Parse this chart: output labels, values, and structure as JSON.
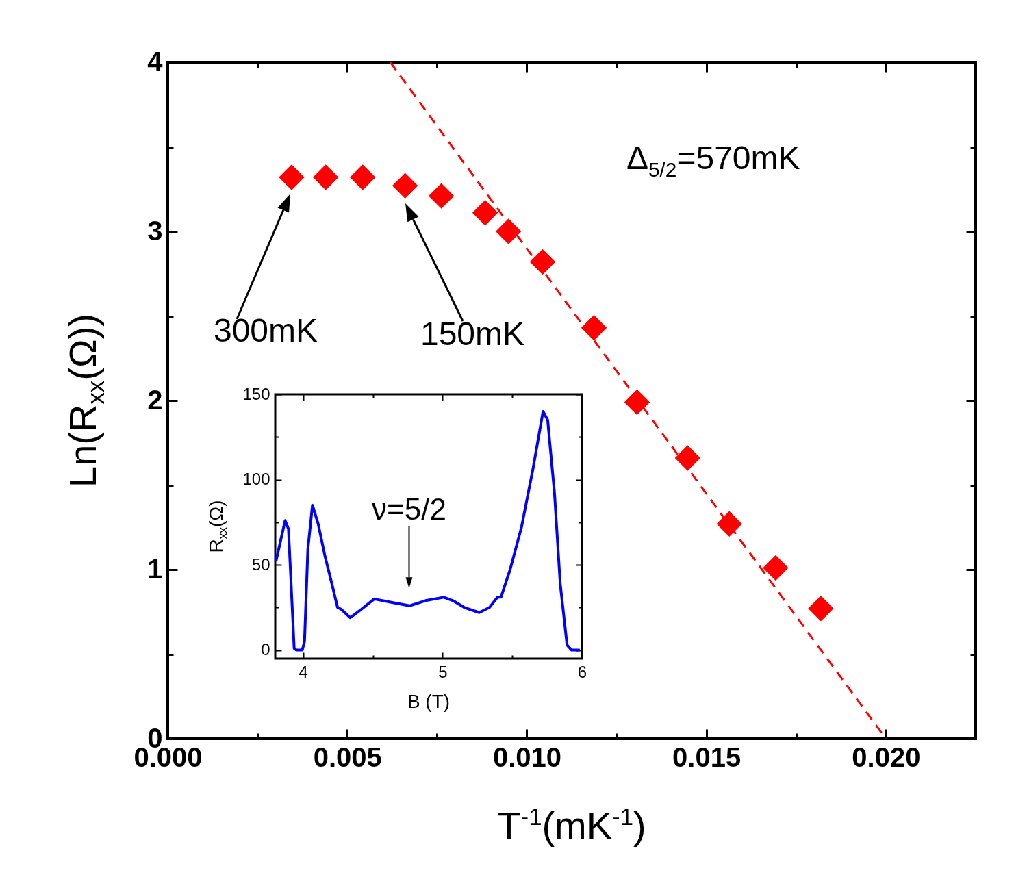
{
  "chart_data": [
    {
      "type": "scatter",
      "xlabel": "T$^{-1}$(mK$^{-1}$)",
      "ylabel": "Ln(R$_{xx}$(Ω))",
      "marker": "diamond",
      "series": [
        {
          "color": "#ff0000",
          "x": [
            0.00345,
            0.0044,
            0.00543,
            0.00661,
            0.00762,
            0.00884,
            0.00949,
            0.01044,
            0.01187,
            0.01307,
            0.01448,
            0.01564,
            0.01693,
            0.01819
          ],
          "values": [
            3.32,
            3.32,
            3.32,
            3.27,
            3.21,
            3.11,
            3.0,
            2.82,
            2.43,
            1.99,
            1.66,
            1.27,
            1.01,
            0.77
          ]
        },
        {
          "type": "line",
          "color": "#ff0000",
          "marker": "none",
          "line_style": "dashed",
          "x": [
            0.0062,
            0.02
          ],
          "values": [
            4,
            0
          ]
        }
      ],
      "xlim": [
        0,
        0.0225
      ],
      "xticks": [
        {
          "value": 0,
          "label": "0.000"
        },
        {
          "value": 0.0025,
          "label": null
        },
        {
          "value": 0.005,
          "label": "0.005"
        },
        {
          "value": 0.0075,
          "label": null
        },
        {
          "value": 0.01,
          "label": "0.010"
        },
        {
          "value": 0.0125,
          "label": null
        },
        {
          "value": 0.015,
          "label": "0.015"
        },
        {
          "value": 0.0175,
          "label": null
        },
        {
          "value": 0.02,
          "label": "0.020"
        }
      ],
      "ylim": [
        0,
        4
      ],
      "yticks": [
        0,
        {
          "value": 0.5,
          "label": null
        },
        1,
        {
          "value": 1.5,
          "label": null
        },
        2,
        {
          "value": 2.5,
          "label": null
        },
        3,
        {
          "value": 3.5,
          "label": null
        },
        4
      ],
      "annotations": [
        "Δ$_{5/2}$=570mK",
        "300mK",
        "150mK"
      ]
    },
    {
      "type": "line",
      "xlabel": "B (T)",
      "ylabel": "R$_{xx}$(Ω)",
      "color": "#0000ff",
      "x": [
        3.805,
        3.871,
        3.895,
        3.936,
        3.952,
        3.994,
        4.01,
        4.034,
        4.067,
        4.108,
        4.157,
        4.206,
        4.247,
        4.272,
        4.338,
        4.419,
        4.51,
        4.632,
        4.763,
        4.878,
        5.009,
        5.075,
        5.156,
        5.263,
        5.337,
        5.394,
        5.419,
        5.484,
        5.566,
        5.648,
        5.721,
        5.754,
        5.803,
        5.844,
        5.893,
        5.926,
        5.984
      ],
      "values": [
        52,
        76,
        71,
        1,
        0,
        0,
        5,
        59,
        85,
        74,
        55,
        39,
        25,
        24,
        19,
        24,
        30,
        28,
        26,
        29,
        31,
        29,
        25,
        22,
        25,
        31,
        31,
        47,
        72,
        106,
        140,
        135,
        92,
        39,
        3,
        0,
        0
      ],
      "xlim": [
        3.8,
        6
      ],
      "xticks": [
        4,
        {
          "value": 4.5,
          "label": null
        },
        5,
        {
          "value": 5.5,
          "label": null
        },
        6
      ],
      "ylim": [
        -5,
        150
      ],
      "yticks": [
        0,
        {
          "value": 25,
          "label": null
        },
        50,
        {
          "value": 75,
          "label": null
        },
        100,
        {
          "value": 125,
          "label": null
        },
        150
      ],
      "annotations": [
        {
          "text": "ν=5/2",
          "x": 4.76,
          "y": 27
        }
      ]
    }
  ]
}
